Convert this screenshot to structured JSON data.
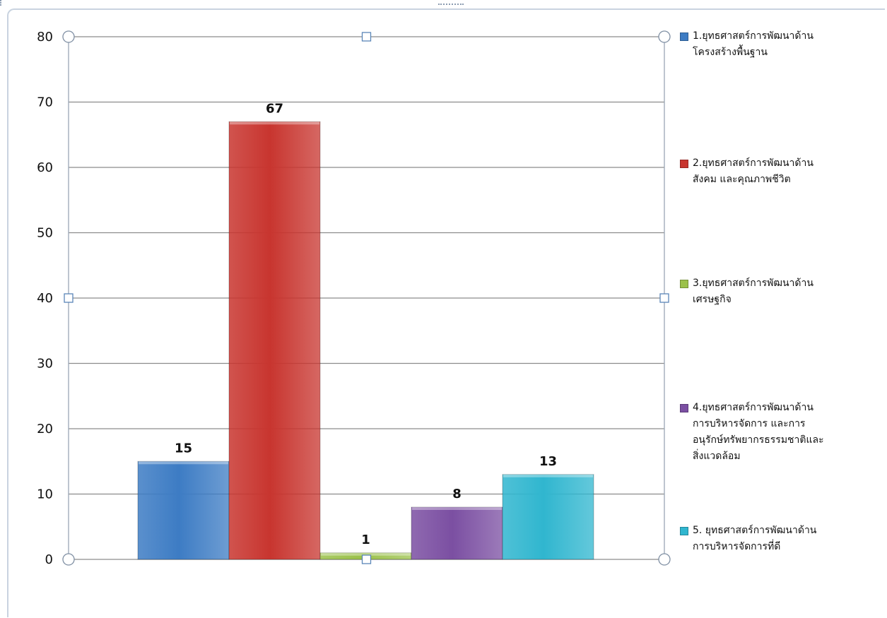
{
  "chart_data": {
    "type": "bar",
    "ylim": [
      0,
      80
    ],
    "yticks": [
      "0",
      "10",
      "20",
      "30",
      "40",
      "50",
      "60",
      "70",
      "80"
    ],
    "grid": true,
    "legend_position": "right",
    "series": [
      {
        "name": "1.ยุทธศาสตร์การพัฒนาด้าน\nโครงสร้างพื้นฐาน",
        "value": 15,
        "label": "15",
        "color": "#3d7cc4"
      },
      {
        "name": "2.ยุทธศาสตร์การพัฒนาด้าน\nสังคม และคุณภาพชีวิต",
        "value": 67,
        "label": "67",
        "color": "#c8352f"
      },
      {
        "name": "3.ยุทธศาสตร์การพัฒนาด้าน\nเศรษฐกิจ",
        "value": 1,
        "label": "1",
        "color": "#9bc14a"
      },
      {
        "name": "4.ยุทธศาสตร์การพัฒนาด้าน\nการบริหารจัดการ และการ\nอนุรักษ์ทรัพยากรธรรมชาติและ\nสิ่งแวดล้อม",
        "value": 8,
        "label": "8",
        "color": "#7b4fa2"
      },
      {
        "name": "5. ยุทธศาสตร์การพัฒนาด้าน\nการบริหารจัดการที่ดี",
        "value": 13,
        "label": "13",
        "color": "#30b6cf"
      }
    ]
  }
}
